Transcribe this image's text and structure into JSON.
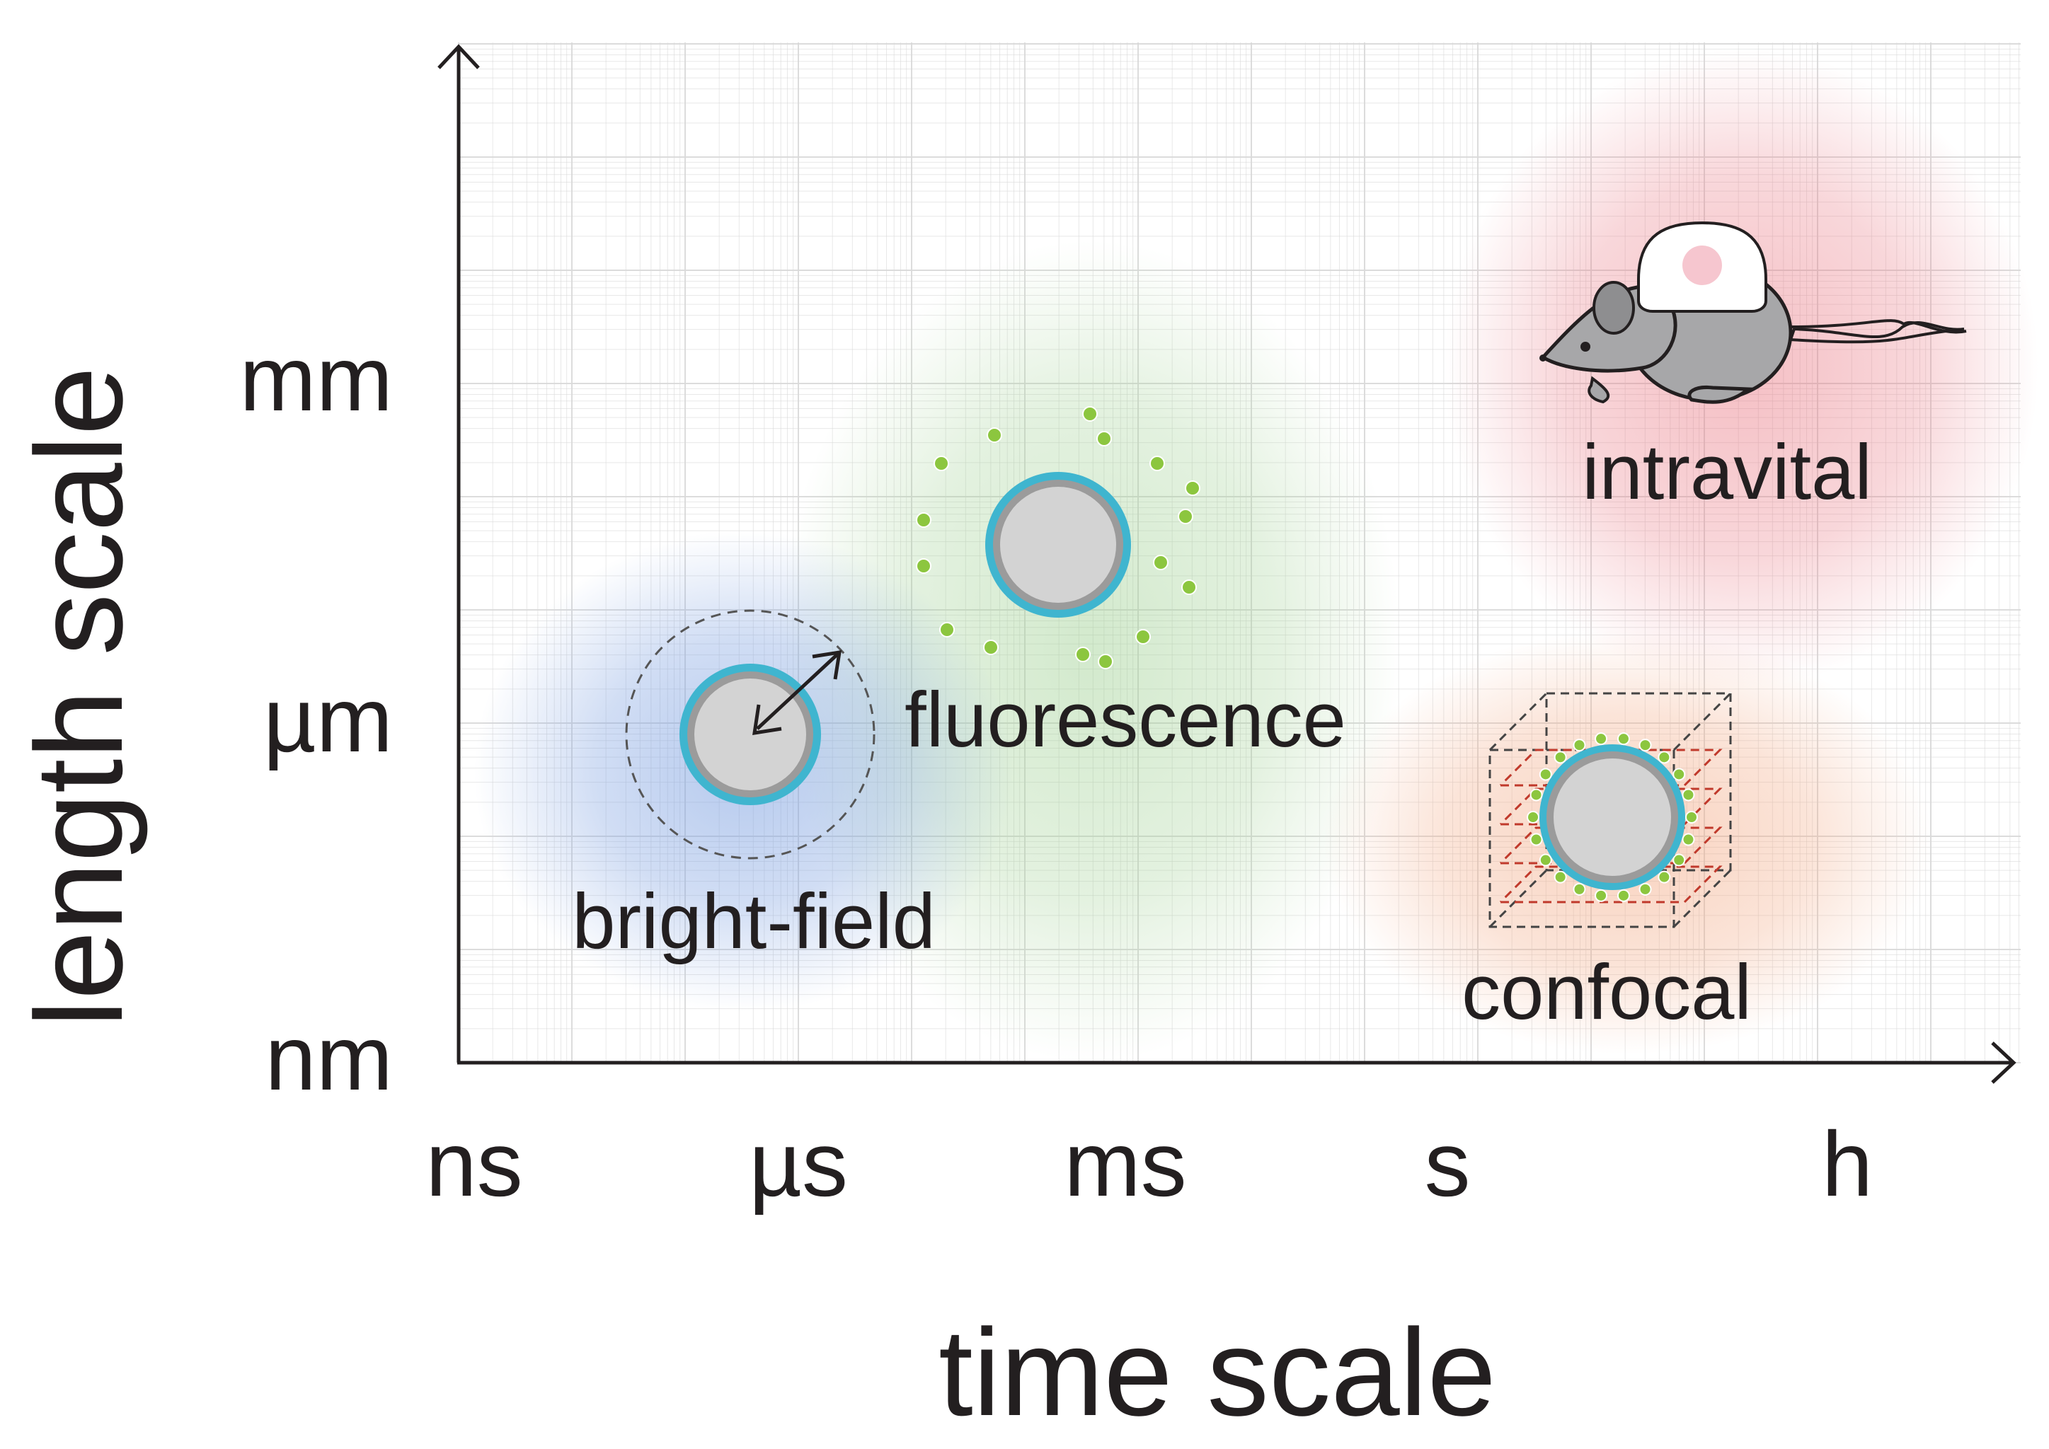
{
  "axes": {
    "x_title": "time scale",
    "y_title": "length scale",
    "x_ticks": [
      "ns",
      "µs",
      "ms",
      "s",
      "h"
    ],
    "y_ticks": [
      "mm",
      "µm",
      "nm"
    ]
  },
  "regions": [
    {
      "id": "bright-field",
      "label": "bright-field",
      "color": "#7b9fe0"
    },
    {
      "id": "fluorescence",
      "label": "fluorescence",
      "color": "#9ccf8f"
    },
    {
      "id": "intravital",
      "label": "intravital",
      "color": "#e8707c"
    },
    {
      "id": "confocal",
      "label": "confocal",
      "color": "#f2a57e"
    }
  ],
  "colors": {
    "axis": "#231f20",
    "grid": "#d9d9d9",
    "cell_fill": "#d3d3d3",
    "cell_rim": "#9b9b9b",
    "membrane": "#3fb5cf",
    "dots": "#8cc63f",
    "mouse_body": "#a7a7a9",
    "confocal_planes": "#c0392b"
  },
  "icons": [
    "cell-icon",
    "resize-arrow-icon",
    "dotted-circle-icon",
    "mouse-icon",
    "head-mount-icon",
    "confocal-cube-icon"
  ]
}
